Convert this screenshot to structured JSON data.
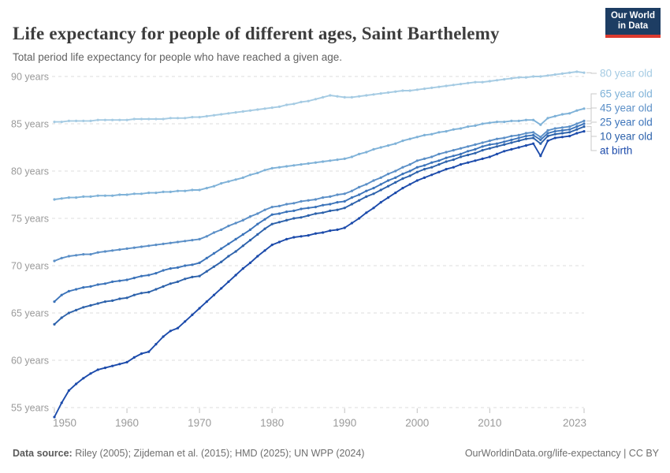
{
  "header": {
    "title": "Life expectancy for people of different ages, Saint Barthelemy",
    "subtitle": "Total period life expectancy for people who have reached a given age.",
    "logo_line1": "Our World",
    "logo_line2": "in Data"
  },
  "footer": {
    "data_source_label": "Data source:",
    "data_source_text": " Riley (2005); Zijdeman et al. (2015); HMD (2025); UN WPP (2024)",
    "link_text": "OurWorldinData.org/life-expectancy | CC BY"
  },
  "colors": {
    "grid": "#dcdcdc",
    "axis_text": "#9a9a9a",
    "tick_mark": "#c0c0c0",
    "connector": "#c9c9c9",
    "logo_bg": "#1d3d63",
    "logo_red": "#dc3a2f"
  },
  "chart_data": {
    "type": "line",
    "title": "Life expectancy for people of different ages, Saint Barthelemy",
    "subtitle": "Total period life expectancy for people who have reached a given age.",
    "xlabel": "",
    "ylabel": "years",
    "grid": "dashed-horizontal",
    "legend_position": "right",
    "xlim": [
      1950,
      2023
    ],
    "ylim": [
      53.5,
      91
    ],
    "x_ticks": [
      1950,
      1960,
      1970,
      1980,
      1990,
      2000,
      2010,
      2023
    ],
    "y_ticks": [
      55,
      60,
      65,
      70,
      75,
      80,
      85,
      90
    ],
    "y_tick_suffix": " years",
    "years": [
      1950,
      1951,
      1952,
      1953,
      1954,
      1955,
      1956,
      1957,
      1958,
      1959,
      1960,
      1961,
      1962,
      1963,
      1964,
      1965,
      1966,
      1967,
      1968,
      1969,
      1970,
      1971,
      1972,
      1973,
      1974,
      1975,
      1976,
      1977,
      1978,
      1979,
      1980,
      1981,
      1982,
      1983,
      1984,
      1985,
      1986,
      1987,
      1988,
      1989,
      1990,
      1991,
      1992,
      1993,
      1994,
      1995,
      1996,
      1997,
      1998,
      1999,
      2000,
      2001,
      2002,
      2003,
      2004,
      2005,
      2006,
      2007,
      2008,
      2009,
      2010,
      2011,
      2012,
      2013,
      2014,
      2015,
      2016,
      2017,
      2018,
      2019,
      2020,
      2021,
      2022,
      2023
    ],
    "series": [
      {
        "name": "80 year old",
        "color": "#a5cbe3",
        "values": [
          85.2,
          85.2,
          85.3,
          85.3,
          85.3,
          85.3,
          85.4,
          85.4,
          85.4,
          85.4,
          85.4,
          85.5,
          85.5,
          85.5,
          85.5,
          85.5,
          85.6,
          85.6,
          85.6,
          85.7,
          85.7,
          85.8,
          85.9,
          86.0,
          86.1,
          86.2,
          86.3,
          86.4,
          86.5,
          86.6,
          86.7,
          86.8,
          87.0,
          87.1,
          87.3,
          87.4,
          87.6,
          87.8,
          88.0,
          87.9,
          87.8,
          87.8,
          87.9,
          88.0,
          88.1,
          88.2,
          88.3,
          88.4,
          88.5,
          88.5,
          88.6,
          88.7,
          88.8,
          88.9,
          89.0,
          89.1,
          89.2,
          89.3,
          89.4,
          89.4,
          89.5,
          89.6,
          89.7,
          89.8,
          89.9,
          89.9,
          90.0,
          90.0,
          90.1,
          90.2,
          90.3,
          90.4,
          90.5,
          90.4
        ]
      },
      {
        "name": "65 year old",
        "color": "#7fb2d8",
        "values": [
          77.0,
          77.1,
          77.2,
          77.2,
          77.3,
          77.3,
          77.4,
          77.4,
          77.4,
          77.5,
          77.5,
          77.6,
          77.6,
          77.7,
          77.7,
          77.8,
          77.8,
          77.9,
          77.9,
          78.0,
          78.0,
          78.2,
          78.4,
          78.7,
          78.9,
          79.1,
          79.3,
          79.6,
          79.8,
          80.1,
          80.3,
          80.4,
          80.5,
          80.6,
          80.7,
          80.8,
          80.9,
          81.0,
          81.1,
          81.2,
          81.3,
          81.5,
          81.8,
          82.0,
          82.3,
          82.5,
          82.7,
          82.9,
          83.2,
          83.4,
          83.6,
          83.8,
          83.9,
          84.1,
          84.2,
          84.4,
          84.5,
          84.7,
          84.8,
          85.0,
          85.1,
          85.2,
          85.2,
          85.3,
          85.3,
          85.4,
          85.4,
          84.9,
          85.6,
          85.8,
          86.0,
          86.1,
          86.4,
          86.6
        ]
      },
      {
        "name": "45 year old",
        "color": "#5b8fc7",
        "values": [
          70.5,
          70.8,
          71.0,
          71.1,
          71.2,
          71.2,
          71.4,
          71.5,
          71.6,
          71.7,
          71.8,
          71.9,
          72.0,
          72.1,
          72.2,
          72.3,
          72.4,
          72.5,
          72.6,
          72.7,
          72.8,
          73.1,
          73.5,
          73.8,
          74.2,
          74.5,
          74.8,
          75.2,
          75.5,
          75.9,
          76.2,
          76.3,
          76.5,
          76.6,
          76.8,
          76.9,
          77.0,
          77.2,
          77.3,
          77.5,
          77.6,
          77.9,
          78.3,
          78.6,
          79.0,
          79.3,
          79.7,
          80.0,
          80.4,
          80.7,
          81.1,
          81.3,
          81.5,
          81.8,
          82.0,
          82.2,
          82.4,
          82.6,
          82.8,
          83.0,
          83.2,
          83.4,
          83.5,
          83.7,
          83.8,
          84.0,
          84.1,
          83.6,
          84.3,
          84.5,
          84.6,
          84.7,
          85.0,
          85.3
        ]
      },
      {
        "name": "25 year old",
        "color": "#3c74ba",
        "values": [
          66.2,
          66.9,
          67.3,
          67.5,
          67.7,
          67.8,
          68.0,
          68.1,
          68.3,
          68.4,
          68.5,
          68.7,
          68.9,
          69.0,
          69.2,
          69.5,
          69.7,
          69.8,
          70.0,
          70.1,
          70.3,
          70.8,
          71.3,
          71.8,
          72.3,
          72.8,
          73.3,
          73.8,
          74.4,
          74.9,
          75.4,
          75.5,
          75.7,
          75.8,
          76.0,
          76.1,
          76.2,
          76.4,
          76.5,
          76.7,
          76.8,
          77.2,
          77.5,
          77.9,
          78.2,
          78.6,
          79.0,
          79.3,
          79.7,
          80.0,
          80.4,
          80.6,
          80.9,
          81.1,
          81.4,
          81.6,
          81.8,
          82.1,
          82.3,
          82.6,
          82.8,
          82.9,
          83.1,
          83.3,
          83.5,
          83.7,
          83.8,
          83.3,
          84.0,
          84.2,
          84.3,
          84.4,
          84.7,
          85.0
        ]
      },
      {
        "name": "10 year old",
        "color": "#2d62ab",
        "values": [
          63.8,
          64.5,
          65.0,
          65.3,
          65.6,
          65.8,
          66.0,
          66.2,
          66.3,
          66.5,
          66.6,
          66.9,
          67.1,
          67.2,
          67.5,
          67.8,
          68.1,
          68.3,
          68.6,
          68.8,
          68.9,
          69.4,
          69.9,
          70.4,
          71.0,
          71.5,
          72.1,
          72.7,
          73.3,
          73.9,
          74.4,
          74.6,
          74.8,
          75.0,
          75.1,
          75.3,
          75.5,
          75.6,
          75.8,
          75.9,
          76.1,
          76.5,
          76.9,
          77.3,
          77.6,
          78.0,
          78.4,
          78.8,
          79.2,
          79.5,
          79.9,
          80.2,
          80.4,
          80.7,
          81.0,
          81.2,
          81.5,
          81.7,
          81.9,
          82.2,
          82.4,
          82.6,
          82.8,
          83.0,
          83.2,
          83.4,
          83.5,
          82.9,
          83.7,
          83.9,
          84.0,
          84.1,
          84.4,
          84.7
        ]
      },
      {
        "name": "at birth",
        "color": "#1c4bab",
        "values": [
          54.0,
          55.5,
          56.8,
          57.5,
          58.1,
          58.6,
          59.0,
          59.2,
          59.4,
          59.6,
          59.8,
          60.3,
          60.7,
          60.9,
          61.7,
          62.5,
          63.1,
          63.4,
          64.1,
          64.8,
          65.5,
          66.2,
          66.9,
          67.6,
          68.3,
          69.0,
          69.7,
          70.3,
          71.0,
          71.6,
          72.2,
          72.5,
          72.8,
          73.0,
          73.1,
          73.2,
          73.4,
          73.5,
          73.7,
          73.8,
          74.0,
          74.5,
          75.0,
          75.6,
          76.1,
          76.7,
          77.2,
          77.7,
          78.2,
          78.6,
          79.0,
          79.3,
          79.6,
          79.9,
          80.2,
          80.4,
          80.7,
          80.9,
          81.1,
          81.3,
          81.5,
          81.8,
          82.1,
          82.3,
          82.5,
          82.7,
          82.9,
          81.6,
          83.2,
          83.5,
          83.6,
          83.7,
          84.0,
          84.2
        ]
      }
    ]
  }
}
